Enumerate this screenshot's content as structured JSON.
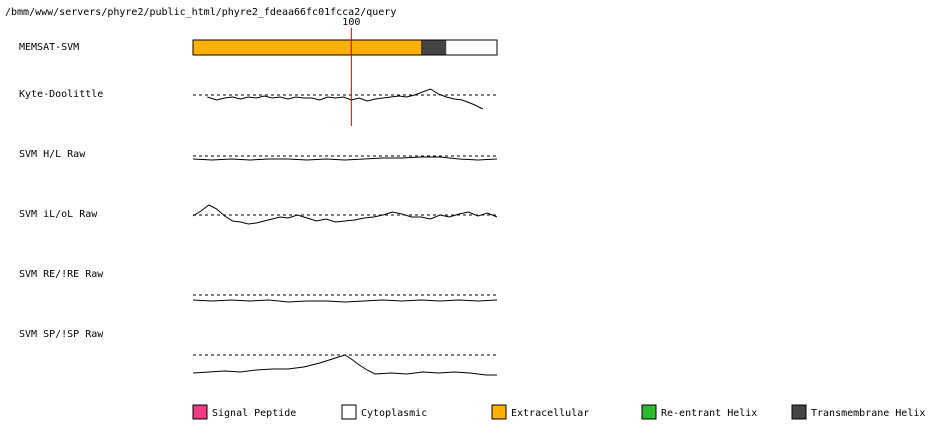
{
  "chart_data": {
    "type": "memsat",
    "path": "/bmm/www/servers/phyre2/public_html/phyre2_fdeaa66fc01fcca2/query",
    "marker": 100,
    "xlim": [
      0,
      192
    ],
    "ylim": [
      -20,
      20
    ],
    "prediction_label": "MEMSAT-SVM",
    "segments": [
      {
        "class": "Extracellular",
        "start": 0,
        "end": 144
      },
      {
        "class": "Transmembrane Helix",
        "start": 144,
        "end": 160
      },
      {
        "class": "Cytoplasmic",
        "start": 160,
        "end": 192
      }
    ],
    "tracks": [
      {
        "name": "Kyte-Doolittle",
        "x": [
          9,
          15,
          20,
          25,
          30,
          35,
          40,
          45,
          50,
          55,
          60,
          65,
          70,
          75,
          80,
          85,
          90,
          95,
          100,
          105,
          110,
          115,
          120,
          125,
          130,
          135,
          140,
          145,
          150,
          155,
          160,
          165,
          170,
          175,
          178,
          183
        ],
        "values": [
          -2,
          -5,
          -3,
          -2,
          -4,
          -2,
          -3,
          -1,
          -3,
          -2,
          -4,
          -2,
          -3,
          -3,
          -5,
          -2,
          -3,
          -2,
          -5,
          -3,
          -6,
          -4,
          -3,
          -2,
          -1,
          -2,
          0,
          3,
          6,
          1,
          -2,
          -4,
          -5,
          -8,
          -10,
          -14
        ]
      },
      {
        "name": "SVM H/L Raw",
        "x": [
          0,
          12,
          24,
          36,
          48,
          60,
          72,
          84,
          96,
          108,
          120,
          132,
          144,
          156,
          168,
          180,
          192
        ],
        "values": [
          -3,
          -4,
          -3,
          -4,
          -3,
          -3,
          -4,
          -3,
          -4,
          -3,
          -2,
          -2,
          -1,
          -1,
          -3,
          -4,
          -3
        ]
      },
      {
        "name": "SVM iL/oL Raw",
        "x": [
          0,
          5,
          10,
          15,
          20,
          25,
          30,
          35,
          40,
          45,
          50,
          55,
          60,
          66,
          72,
          78,
          84,
          90,
          96,
          102,
          108,
          114,
          120,
          126,
          132,
          138,
          144,
          150,
          156,
          162,
          168,
          174,
          180,
          186,
          192
        ],
        "values": [
          -1,
          4,
          10,
          6,
          -1,
          -6,
          -7,
          -9,
          -8,
          -6,
          -4,
          -2,
          -3,
          0,
          -3,
          -6,
          -4,
          -7,
          -6,
          -5,
          -3,
          -2,
          0,
          3,
          1,
          -2,
          -2,
          -4,
          0,
          -2,
          1,
          3,
          -1,
          2,
          -2
        ]
      },
      {
        "name": "SVM RE/!RE Raw",
        "x": [
          0,
          12,
          24,
          36,
          48,
          60,
          72,
          84,
          96,
          108,
          120,
          132,
          144,
          156,
          168,
          180,
          192
        ],
        "values": [
          -5,
          -6,
          -5,
          -6,
          -5,
          -7,
          -6,
          -6,
          -7,
          -6,
          -5,
          -6,
          -5,
          -6,
          -5,
          -6,
          -5
        ]
      },
      {
        "name": "SVM SP/!SP Raw",
        "x": [
          0,
          10,
          20,
          30,
          40,
          50,
          60,
          70,
          80,
          88,
          96,
          100,
          105,
          110,
          115,
          125,
          135,
          145,
          155,
          165,
          175,
          185,
          192
        ],
        "values": [
          -18,
          -17,
          -16,
          -17,
          -15,
          -14,
          -14,
          -12,
          -8,
          -4,
          0,
          -4,
          -10,
          -15,
          -19,
          -18,
          -19,
          -17,
          -18,
          -17,
          -18,
          -20,
          -20
        ]
      }
    ],
    "legend": [
      {
        "name": "Signal Peptide",
        "color": "#f03c82"
      },
      {
        "name": "Cytoplasmic",
        "color": "#ffffff"
      },
      {
        "name": "Extracellular",
        "color": "#ffb000"
      },
      {
        "name": "Re-entrant Helix",
        "color": "#2eb82e"
      },
      {
        "name": "Transmembrane Helix",
        "color": "#444444"
      }
    ]
  }
}
